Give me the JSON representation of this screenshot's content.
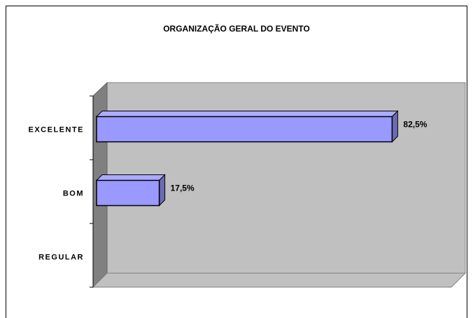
{
  "chart_data": {
    "type": "bar",
    "orientation": "horizontal",
    "three_d": true,
    "title": "ORGANIZAÇÃO GERAL DO EVENTO",
    "categories": [
      "EXCELENTE",
      "BOM",
      "REGULAR"
    ],
    "values": [
      82.5,
      17.5,
      0
    ],
    "value_labels": [
      "82,5%",
      "17,5%",
      null
    ],
    "color": "#9999ff",
    "xlim": [
      0,
      100
    ]
  }
}
